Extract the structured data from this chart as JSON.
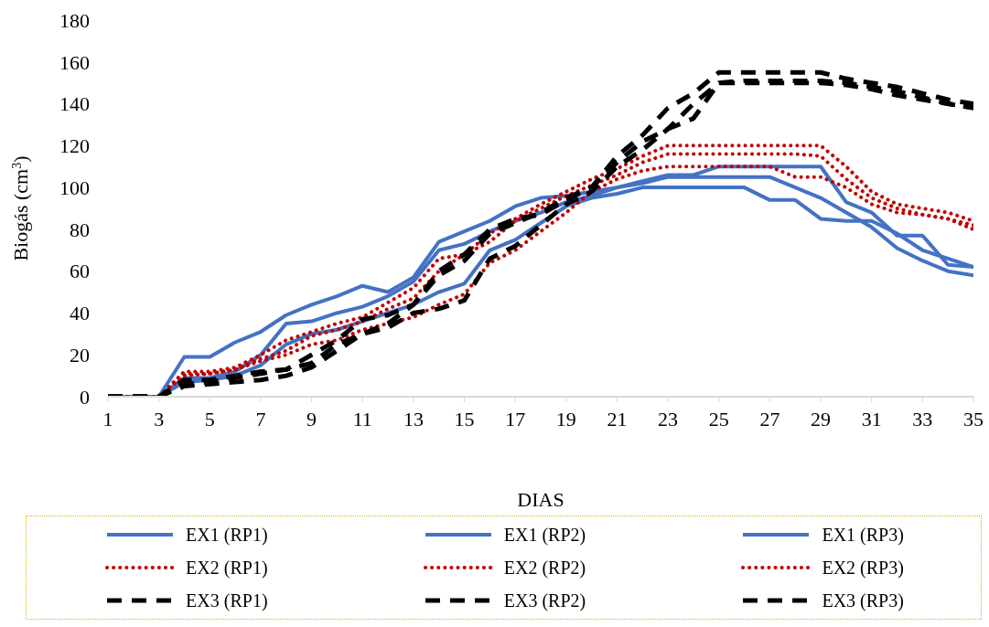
{
  "chart_data": {
    "type": "line",
    "xlabel": "DIAS",
    "ylabel": "Biogás (cm$^{3}$)",
    "x": [
      1,
      2,
      3,
      4,
      5,
      6,
      7,
      8,
      9,
      10,
      11,
      12,
      13,
      14,
      15,
      16,
      17,
      18,
      19,
      20,
      21,
      22,
      23,
      24,
      25,
      26,
      27,
      28,
      29,
      30,
      31,
      32,
      33,
      34,
      35
    ],
    "xlim": [
      1,
      35
    ],
    "xticks": [
      1,
      3,
      5,
      7,
      9,
      11,
      13,
      15,
      17,
      19,
      21,
      23,
      25,
      27,
      29,
      31,
      33,
      35
    ],
    "ylim": [
      0,
      180
    ],
    "yticks": [
      0,
      20,
      40,
      60,
      80,
      100,
      120,
      140,
      160,
      180
    ],
    "grid": false,
    "legend": "bottom",
    "marker": "none",
    "series": [
      {
        "name": "EX1 (RP1)",
        "color": "#4472c4",
        "line_style": "solid",
        "values": [
          0,
          0,
          0,
          19,
          19,
          26,
          31,
          39,
          44,
          48,
          53,
          50,
          57,
          74,
          79,
          84,
          91,
          95,
          96,
          98,
          100,
          103,
          106,
          106,
          110,
          110,
          110,
          110,
          110,
          93,
          88,
          77,
          77,
          63,
          62
        ]
      },
      {
        "name": "EX1 (RP2)",
        "color": "#4472c4",
        "line_style": "solid",
        "values": [
          0,
          0,
          0,
          9,
          9,
          12,
          20,
          35,
          36,
          40,
          43,
          48,
          55,
          70,
          73,
          79,
          84,
          88,
          93,
          96,
          100,
          102,
          105,
          105,
          105,
          105,
          105,
          100,
          95,
          88,
          81,
          71,
          65,
          60,
          58
        ]
      },
      {
        "name": "EX1 (RP3)",
        "color": "#4472c4",
        "line_style": "solid",
        "values": [
          0,
          0,
          0,
          7,
          8,
          10,
          15,
          25,
          30,
          32,
          36,
          40,
          44,
          50,
          54,
          70,
          75,
          83,
          91,
          95,
          97,
          100,
          100,
          100,
          100,
          100,
          94,
          94,
          85,
          84,
          84,
          78,
          70,
          66,
          62
        ]
      },
      {
        "name": "EX2 (RP1)",
        "color": "#c00000",
        "line_style": "dotted",
        "values": [
          0,
          0,
          0,
          12,
          12,
          14,
          20,
          27,
          31,
          35,
          38,
          45,
          52,
          66,
          68,
          78,
          85,
          92,
          98,
          104,
          109,
          115,
          120,
          120,
          120,
          120,
          120,
          120,
          120,
          110,
          98,
          92,
          90,
          88,
          84
        ]
      },
      {
        "name": "EX2 (RP2)",
        "color": "#c00000",
        "line_style": "dotted",
        "values": [
          0,
          0,
          0,
          10,
          11,
          13,
          18,
          22,
          29,
          32,
          36,
          42,
          47,
          60,
          68,
          74,
          84,
          90,
          96,
          101,
          106,
          112,
          116,
          116,
          116,
          116,
          116,
          116,
          115,
          104,
          95,
          90,
          87,
          85,
          80
        ]
      },
      {
        "name": "EX2 (RP3)",
        "color": "#c00000",
        "line_style": "dotted",
        "values": [
          0,
          0,
          0,
          11,
          11,
          13,
          17,
          20,
          25,
          27,
          32,
          35,
          38,
          44,
          49,
          64,
          70,
          79,
          88,
          98,
          104,
          108,
          110,
          110,
          110,
          110,
          110,
          105,
          105,
          100,
          92,
          88,
          87,
          85,
          82
        ]
      },
      {
        "name": "EX3 (RP1)",
        "color": "#000000",
        "line_style": "dashed",
        "values": [
          0,
          0,
          0,
          8,
          8,
          10,
          12,
          13,
          16,
          25,
          30,
          35,
          44,
          58,
          65,
          78,
          83,
          88,
          95,
          100,
          115,
          125,
          138,
          145,
          155,
          155,
          155,
          155,
          155,
          152,
          150,
          148,
          145,
          142,
          140
        ]
      },
      {
        "name": "EX3 (RP2)",
        "color": "#000000",
        "line_style": "dashed",
        "values": [
          0,
          0,
          0,
          6,
          7,
          9,
          11,
          13,
          20,
          27,
          37,
          39,
          44,
          60,
          68,
          80,
          85,
          87,
          94,
          100,
          112,
          122,
          128,
          133,
          150,
          150,
          150,
          150,
          150,
          149,
          147,
          144,
          142,
          140,
          138
        ]
      },
      {
        "name": "EX3 (RP3)",
        "color": "#000000",
        "line_style": "dashed",
        "values": [
          0,
          0,
          0,
          5,
          6,
          7,
          8,
          10,
          14,
          22,
          30,
          33,
          40,
          42,
          46,
          66,
          72,
          82,
          92,
          98,
          110,
          118,
          128,
          140,
          150,
          151,
          151,
          151,
          151,
          150,
          148,
          146,
          143,
          140,
          138
        ]
      }
    ]
  }
}
